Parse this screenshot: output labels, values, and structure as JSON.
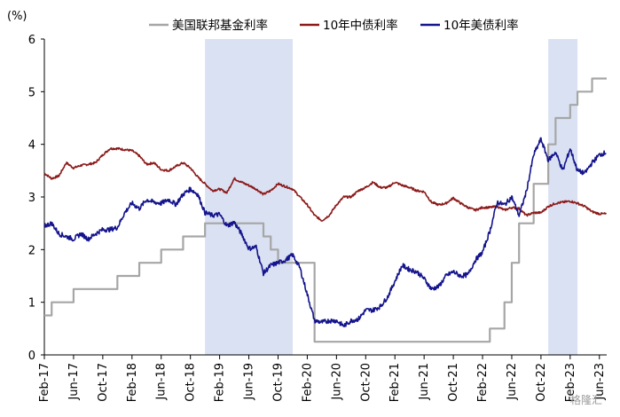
{
  "chart_data": {
    "type": "line",
    "ylabel_unit": "(%)",
    "ylim": [
      0,
      6
    ],
    "yticks": [
      0,
      1,
      2,
      3,
      4,
      5,
      6
    ],
    "x_range": [
      "2017-02",
      "2023-03"
    ],
    "x_tick_labels": [
      "Feb-17",
      "Jun-17",
      "Oct-17",
      "Feb-18",
      "Jun-18",
      "Oct-18",
      "Feb-19",
      "Jun-19",
      "Oct-19",
      "Feb-20",
      "Jun-20",
      "Oct-20",
      "Feb-21",
      "Jun-21",
      "Oct-21",
      "Feb-22",
      "Jun-22",
      "Oct-22",
      "Feb-23",
      "Jun-23"
    ],
    "shaded_periods": [
      {
        "start": "2018-12",
        "end": "2019-12"
      },
      {
        "start": "2022-11",
        "end": "2023-03"
      }
    ],
    "legend_position": "top",
    "grid": false,
    "series": [
      {
        "name": "美国联邦基金利率",
        "color": "#a6a6a6",
        "step": true,
        "points": [
          [
            "2017-02",
            0.75
          ],
          [
            "2017-03",
            1.0
          ],
          [
            "2017-06",
            1.25
          ],
          [
            "2017-12",
            1.5
          ],
          [
            "2018-03",
            1.75
          ],
          [
            "2018-06",
            2.0
          ],
          [
            "2018-09",
            2.25
          ],
          [
            "2018-12",
            2.5
          ],
          [
            "2019-08",
            2.25
          ],
          [
            "2019-09",
            2.0
          ],
          [
            "2019-10",
            1.75
          ],
          [
            "2020-03",
            0.25
          ],
          [
            "2022-03",
            0.5
          ],
          [
            "2022-05",
            1.0
          ],
          [
            "2022-06",
            1.75
          ],
          [
            "2022-07",
            2.5
          ],
          [
            "2022-09",
            3.25
          ],
          [
            "2022-11",
            4.0
          ],
          [
            "2022-12",
            4.5
          ],
          [
            "2023-02",
            4.75
          ],
          [
            "2023-03",
            5.0
          ],
          [
            "2023-05",
            5.25
          ],
          [
            "2023-07",
            5.25
          ]
        ]
      },
      {
        "name": "10年中债利率",
        "color": "#8b1a1a",
        "step": false,
        "points": [
          [
            "2017-02",
            3.45
          ],
          [
            "2017-03",
            3.35
          ],
          [
            "2017-04",
            3.4
          ],
          [
            "2017-05",
            3.65
          ],
          [
            "2017-06",
            3.55
          ],
          [
            "2017-07",
            3.6
          ],
          [
            "2017-08",
            3.62
          ],
          [
            "2017-09",
            3.65
          ],
          [
            "2017-10",
            3.8
          ],
          [
            "2017-11",
            3.92
          ],
          [
            "2017-12",
            3.92
          ],
          [
            "2018-01",
            3.9
          ],
          [
            "2018-02",
            3.88
          ],
          [
            "2018-03",
            3.78
          ],
          [
            "2018-04",
            3.62
          ],
          [
            "2018-05",
            3.65
          ],
          [
            "2018-06",
            3.52
          ],
          [
            "2018-07",
            3.5
          ],
          [
            "2018-08",
            3.58
          ],
          [
            "2018-09",
            3.65
          ],
          [
            "2018-10",
            3.55
          ],
          [
            "2018-11",
            3.38
          ],
          [
            "2018-12",
            3.25
          ],
          [
            "2019-01",
            3.12
          ],
          [
            "2019-02",
            3.15
          ],
          [
            "2019-03",
            3.08
          ],
          [
            "2019-04",
            3.35
          ],
          [
            "2019-05",
            3.28
          ],
          [
            "2019-06",
            3.22
          ],
          [
            "2019-07",
            3.15
          ],
          [
            "2019-08",
            3.05
          ],
          [
            "2019-09",
            3.12
          ],
          [
            "2019-10",
            3.25
          ],
          [
            "2019-11",
            3.2
          ],
          [
            "2019-12",
            3.15
          ],
          [
            "2020-01",
            3.0
          ],
          [
            "2020-02",
            2.85
          ],
          [
            "2020-03",
            2.65
          ],
          [
            "2020-04",
            2.55
          ],
          [
            "2020-05",
            2.65
          ],
          [
            "2020-06",
            2.85
          ],
          [
            "2020-07",
            3.0
          ],
          [
            "2020-08",
            3.0
          ],
          [
            "2020-09",
            3.12
          ],
          [
            "2020-10",
            3.18
          ],
          [
            "2020-11",
            3.28
          ],
          [
            "2020-12",
            3.18
          ],
          [
            "2021-01",
            3.18
          ],
          [
            "2021-02",
            3.28
          ],
          [
            "2021-03",
            3.22
          ],
          [
            "2021-04",
            3.18
          ],
          [
            "2021-05",
            3.12
          ],
          [
            "2021-06",
            3.1
          ],
          [
            "2021-07",
            2.9
          ],
          [
            "2021-08",
            2.85
          ],
          [
            "2021-09",
            2.88
          ],
          [
            "2021-10",
            2.98
          ],
          [
            "2021-11",
            2.88
          ],
          [
            "2021-12",
            2.8
          ],
          [
            "2022-01",
            2.75
          ],
          [
            "2022-02",
            2.8
          ],
          [
            "2022-03",
            2.8
          ],
          [
            "2022-04",
            2.82
          ],
          [
            "2022-05",
            2.75
          ],
          [
            "2022-06",
            2.8
          ],
          [
            "2022-07",
            2.78
          ],
          [
            "2022-08",
            2.65
          ],
          [
            "2022-09",
            2.7
          ],
          [
            "2022-10",
            2.7
          ],
          [
            "2022-11",
            2.82
          ],
          [
            "2022-12",
            2.88
          ],
          [
            "2023-01",
            2.9
          ],
          [
            "2023-02",
            2.92
          ],
          [
            "2023-03",
            2.88
          ],
          [
            "2023-04",
            2.82
          ],
          [
            "2023-05",
            2.72
          ],
          [
            "2023-06",
            2.68
          ],
          [
            "2023-07",
            2.68
          ]
        ]
      },
      {
        "name": "10年美债利率",
        "color": "#14148c",
        "step": false,
        "points": [
          [
            "2017-02",
            2.45
          ],
          [
            "2017-03",
            2.5
          ],
          [
            "2017-04",
            2.3
          ],
          [
            "2017-05",
            2.25
          ],
          [
            "2017-06",
            2.2
          ],
          [
            "2017-07",
            2.3
          ],
          [
            "2017-08",
            2.2
          ],
          [
            "2017-09",
            2.3
          ],
          [
            "2017-10",
            2.38
          ],
          [
            "2017-11",
            2.38
          ],
          [
            "2017-12",
            2.42
          ],
          [
            "2018-01",
            2.7
          ],
          [
            "2018-02",
            2.88
          ],
          [
            "2018-03",
            2.78
          ],
          [
            "2018-04",
            2.95
          ],
          [
            "2018-05",
            2.9
          ],
          [
            "2018-06",
            2.88
          ],
          [
            "2018-07",
            2.95
          ],
          [
            "2018-08",
            2.86
          ],
          [
            "2018-09",
            3.05
          ],
          [
            "2018-10",
            3.15
          ],
          [
            "2018-11",
            3.05
          ],
          [
            "2018-12",
            2.7
          ],
          [
            "2019-01",
            2.65
          ],
          [
            "2019-02",
            2.67
          ],
          [
            "2019-03",
            2.45
          ],
          [
            "2019-04",
            2.52
          ],
          [
            "2019-05",
            2.3
          ],
          [
            "2019-06",
            2.02
          ],
          [
            "2019-07",
            2.05
          ],
          [
            "2019-08",
            1.55
          ],
          [
            "2019-09",
            1.7
          ],
          [
            "2019-10",
            1.75
          ],
          [
            "2019-11",
            1.8
          ],
          [
            "2019-12",
            1.9
          ],
          [
            "2020-01",
            1.65
          ],
          [
            "2020-02",
            1.15
          ],
          [
            "2020-03",
            0.65
          ],
          [
            "2020-04",
            0.62
          ],
          [
            "2020-05",
            0.65
          ],
          [
            "2020-06",
            0.65
          ],
          [
            "2020-07",
            0.55
          ],
          [
            "2020-08",
            0.65
          ],
          [
            "2020-09",
            0.68
          ],
          [
            "2020-10",
            0.85
          ],
          [
            "2020-11",
            0.85
          ],
          [
            "2020-12",
            0.92
          ],
          [
            "2021-01",
            1.1
          ],
          [
            "2021-02",
            1.4
          ],
          [
            "2021-03",
            1.7
          ],
          [
            "2021-04",
            1.62
          ],
          [
            "2021-05",
            1.58
          ],
          [
            "2021-06",
            1.45
          ],
          [
            "2021-07",
            1.25
          ],
          [
            "2021-08",
            1.3
          ],
          [
            "2021-09",
            1.5
          ],
          [
            "2021-10",
            1.58
          ],
          [
            "2021-11",
            1.5
          ],
          [
            "2021-12",
            1.52
          ],
          [
            "2022-01",
            1.8
          ],
          [
            "2022-02",
            1.95
          ],
          [
            "2022-03",
            2.35
          ],
          [
            "2022-04",
            2.9
          ],
          [
            "2022-05",
            2.85
          ],
          [
            "2022-06",
            3.0
          ],
          [
            "2022-07",
            2.65
          ],
          [
            "2022-08",
            3.1
          ],
          [
            "2022-09",
            3.8
          ],
          [
            "2022-10",
            4.1
          ],
          [
            "2022-11",
            3.7
          ],
          [
            "2022-12",
            3.85
          ],
          [
            "2023-01",
            3.5
          ],
          [
            "2023-02",
            3.92
          ],
          [
            "2023-03",
            3.5
          ],
          [
            "2023-04",
            3.45
          ],
          [
            "2023-05",
            3.65
          ],
          [
            "2023-06",
            3.8
          ],
          [
            "2023-07",
            3.85
          ]
        ]
      }
    ]
  },
  "watermark": "格隆汇"
}
